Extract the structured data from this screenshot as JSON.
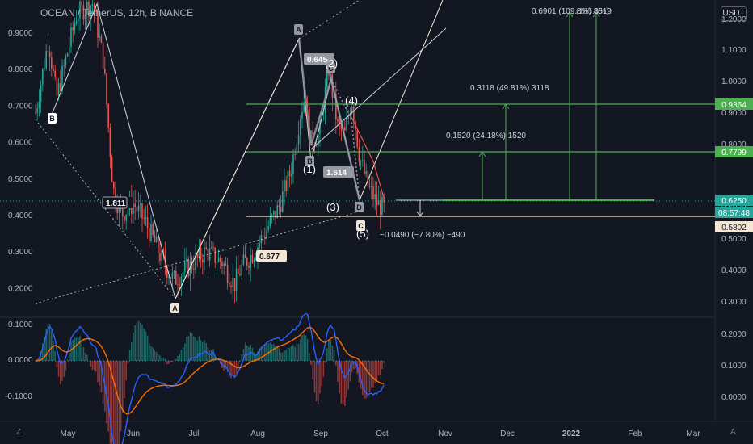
{
  "header": {
    "title": "OCEAN / TetherUS, 12h, BINANCE",
    "currency": "USDT"
  },
  "corners": {
    "left": "Z",
    "right": "A"
  },
  "chart_data": {
    "type": "candlestick",
    "symbol": "OCEAN / TetherUS",
    "interval": "12h",
    "exchange": "BINANCE",
    "x_labels": [
      "May",
      "Jun",
      "Jul",
      "Aug",
      "Sep",
      "Oct",
      "Nov",
      "Dec",
      "2022",
      "Feb",
      "Mar"
    ],
    "left_axis": [
      "0.9000",
      "0.8000",
      "0.7000",
      "0.6000",
      "0.5000",
      "0.4000",
      "0.3000",
      "0.2000"
    ],
    "right_axis": [
      "1.2000",
      "1.1000",
      "1.0000",
      "0.9000",
      "0.8000",
      "0.6000",
      "0.5000",
      "0.4000",
      "0.3000"
    ],
    "indicator_left_axis": [
      "0.1000",
      "0.0000",
      "-0.1000"
    ],
    "indicator_right_axis": [
      "0.2000",
      "0.1000",
      "0.0000"
    ],
    "price_tags": [
      {
        "label": "0.9364",
        "color": "#4caf50",
        "text_color": "#ffffff"
      },
      {
        "label": "0.7799",
        "color": "#4caf50",
        "text_color": "#ffffff"
      },
      {
        "label": "0.6250",
        "color": "#26a69a",
        "text_color": "#ffffff"
      },
      {
        "label": "08:57:48",
        "color": "#26a69a",
        "text_color": "#ffffff"
      },
      {
        "label": "0.5802",
        "color": "#f5e6d3",
        "text_color": "#131722"
      }
    ],
    "annotations": {
      "target1": "0.1520 (24.18%) 1520",
      "target2": "0.3118 (49.81%) 3118",
      "target3": "0.6901 (109.8%) 8519",
      "target3_overlap": "(185.6%)",
      "drop": "−0.0490 (−7.80%) −490",
      "ratio_1811": "1.811",
      "ratio_0677": "0.677",
      "ratio_0645": "0.645",
      "ratio_1614": "1.614"
    },
    "pattern_points": [
      "A",
      "B",
      "A",
      "B",
      "C",
      "D",
      "C"
    ],
    "wave_labels": [
      "(1)",
      "(2)",
      "(3)",
      "(4)",
      "(5)"
    ],
    "colors": {
      "up": "#26a69a",
      "down": "#ef5350",
      "macd": "#2962ff",
      "signal": "#ff6d00",
      "level": "#4caf50"
    }
  }
}
